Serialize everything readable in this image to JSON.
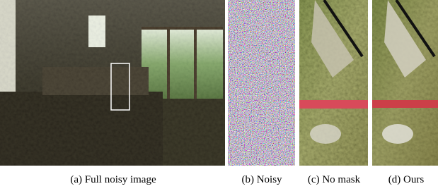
{
  "captions": [
    "(a) Full noisy image",
    "(b) Noisy",
    "(c) No mask",
    "(d) Ours"
  ]
}
